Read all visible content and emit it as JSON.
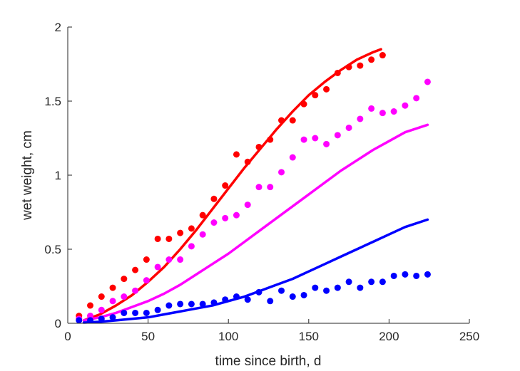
{
  "chart_data": {
    "type": "scatter",
    "xlabel": "time since birth, d",
    "ylabel": "wet weight, cm",
    "xlim": [
      0,
      250
    ],
    "ylim": [
      0,
      2
    ],
    "xticks": [
      0,
      50,
      100,
      150,
      200,
      250
    ],
    "yticks": [
      0,
      0.5,
      1,
      1.5,
      2
    ],
    "xtick_labels": [
      "0",
      "50",
      "100",
      "150",
      "200",
      "250"
    ],
    "ytick_labels": [
      "0",
      "0.5",
      "1",
      "1.5",
      "2"
    ],
    "grid": false,
    "series": [
      {
        "kind": "points",
        "color": "#ff0000",
        "x": [
          7,
          14,
          21,
          28,
          35,
          42,
          49,
          56,
          63,
          70,
          77,
          84,
          91,
          98,
          105,
          112,
          119,
          126,
          133,
          140,
          147,
          154,
          161,
          168,
          175,
          182,
          189,
          196
        ],
        "y": [
          0.05,
          0.12,
          0.18,
          0.24,
          0.3,
          0.36,
          0.43,
          0.57,
          0.57,
          0.61,
          0.64,
          0.73,
          0.84,
          0.93,
          1.14,
          1.09,
          1.19,
          1.24,
          1.37,
          1.37,
          1.48,
          1.54,
          1.58,
          1.69,
          1.73,
          1.74,
          1.78,
          1.81
        ]
      },
      {
        "kind": "line",
        "color": "#ff0000",
        "x": [
          10,
          20,
          30,
          40,
          50,
          60,
          70,
          80,
          90,
          100,
          110,
          120,
          130,
          140,
          150,
          160,
          170,
          180,
          190,
          195
        ],
        "y": [
          0.02,
          0.06,
          0.12,
          0.19,
          0.28,
          0.38,
          0.5,
          0.63,
          0.77,
          0.91,
          1.05,
          1.18,
          1.31,
          1.43,
          1.54,
          1.63,
          1.71,
          1.78,
          1.83,
          1.85
        ]
      },
      {
        "kind": "points",
        "color": "#ff00ff",
        "x": [
          7,
          14,
          21,
          28,
          35,
          42,
          49,
          56,
          63,
          70,
          77,
          84,
          91,
          98,
          105,
          112,
          119,
          126,
          133,
          140,
          147,
          154,
          161,
          168,
          175,
          182,
          189,
          196,
          203,
          210,
          217,
          224
        ],
        "y": [
          0.03,
          0.05,
          0.09,
          0.15,
          0.18,
          0.22,
          0.29,
          0.38,
          0.43,
          0.43,
          0.52,
          0.6,
          0.68,
          0.71,
          0.73,
          0.8,
          0.92,
          0.92,
          1.02,
          1.12,
          1.24,
          1.25,
          1.21,
          1.27,
          1.32,
          1.38,
          1.45,
          1.42,
          1.43,
          1.47,
          1.52,
          1.63
        ]
      },
      {
        "kind": "line",
        "color": "#ff00ff",
        "x": [
          10,
          20,
          30,
          40,
          50,
          60,
          70,
          80,
          90,
          100,
          110,
          120,
          130,
          140,
          150,
          160,
          170,
          180,
          190,
          200,
          210,
          224
        ],
        "y": [
          0.02,
          0.04,
          0.07,
          0.11,
          0.15,
          0.2,
          0.26,
          0.33,
          0.4,
          0.47,
          0.55,
          0.63,
          0.71,
          0.79,
          0.87,
          0.95,
          1.03,
          1.1,
          1.17,
          1.23,
          1.29,
          1.34
        ]
      },
      {
        "kind": "points",
        "color": "#0000ff",
        "x": [
          7,
          14,
          21,
          28,
          35,
          42,
          49,
          56,
          63,
          70,
          77,
          84,
          91,
          98,
          105,
          112,
          119,
          126,
          133,
          140,
          147,
          154,
          161,
          168,
          175,
          182,
          189,
          196,
          203,
          210,
          217,
          224
        ],
        "y": [
          0.02,
          0.02,
          0.03,
          0.04,
          0.07,
          0.07,
          0.07,
          0.09,
          0.12,
          0.13,
          0.13,
          0.13,
          0.14,
          0.16,
          0.18,
          0.16,
          0.21,
          0.15,
          0.22,
          0.18,
          0.19,
          0.24,
          0.22,
          0.24,
          0.28,
          0.24,
          0.28,
          0.28,
          0.32,
          0.33,
          0.32,
          0.33
        ]
      },
      {
        "kind": "line",
        "color": "#0000ff",
        "x": [
          10,
          20,
          30,
          40,
          50,
          60,
          70,
          80,
          90,
          100,
          110,
          120,
          130,
          140,
          150,
          160,
          170,
          180,
          190,
          200,
          210,
          224
        ],
        "y": [
          0.005,
          0.01,
          0.02,
          0.03,
          0.04,
          0.06,
          0.08,
          0.1,
          0.12,
          0.15,
          0.18,
          0.22,
          0.26,
          0.3,
          0.35,
          0.4,
          0.45,
          0.5,
          0.55,
          0.6,
          0.65,
          0.7
        ]
      }
    ]
  }
}
